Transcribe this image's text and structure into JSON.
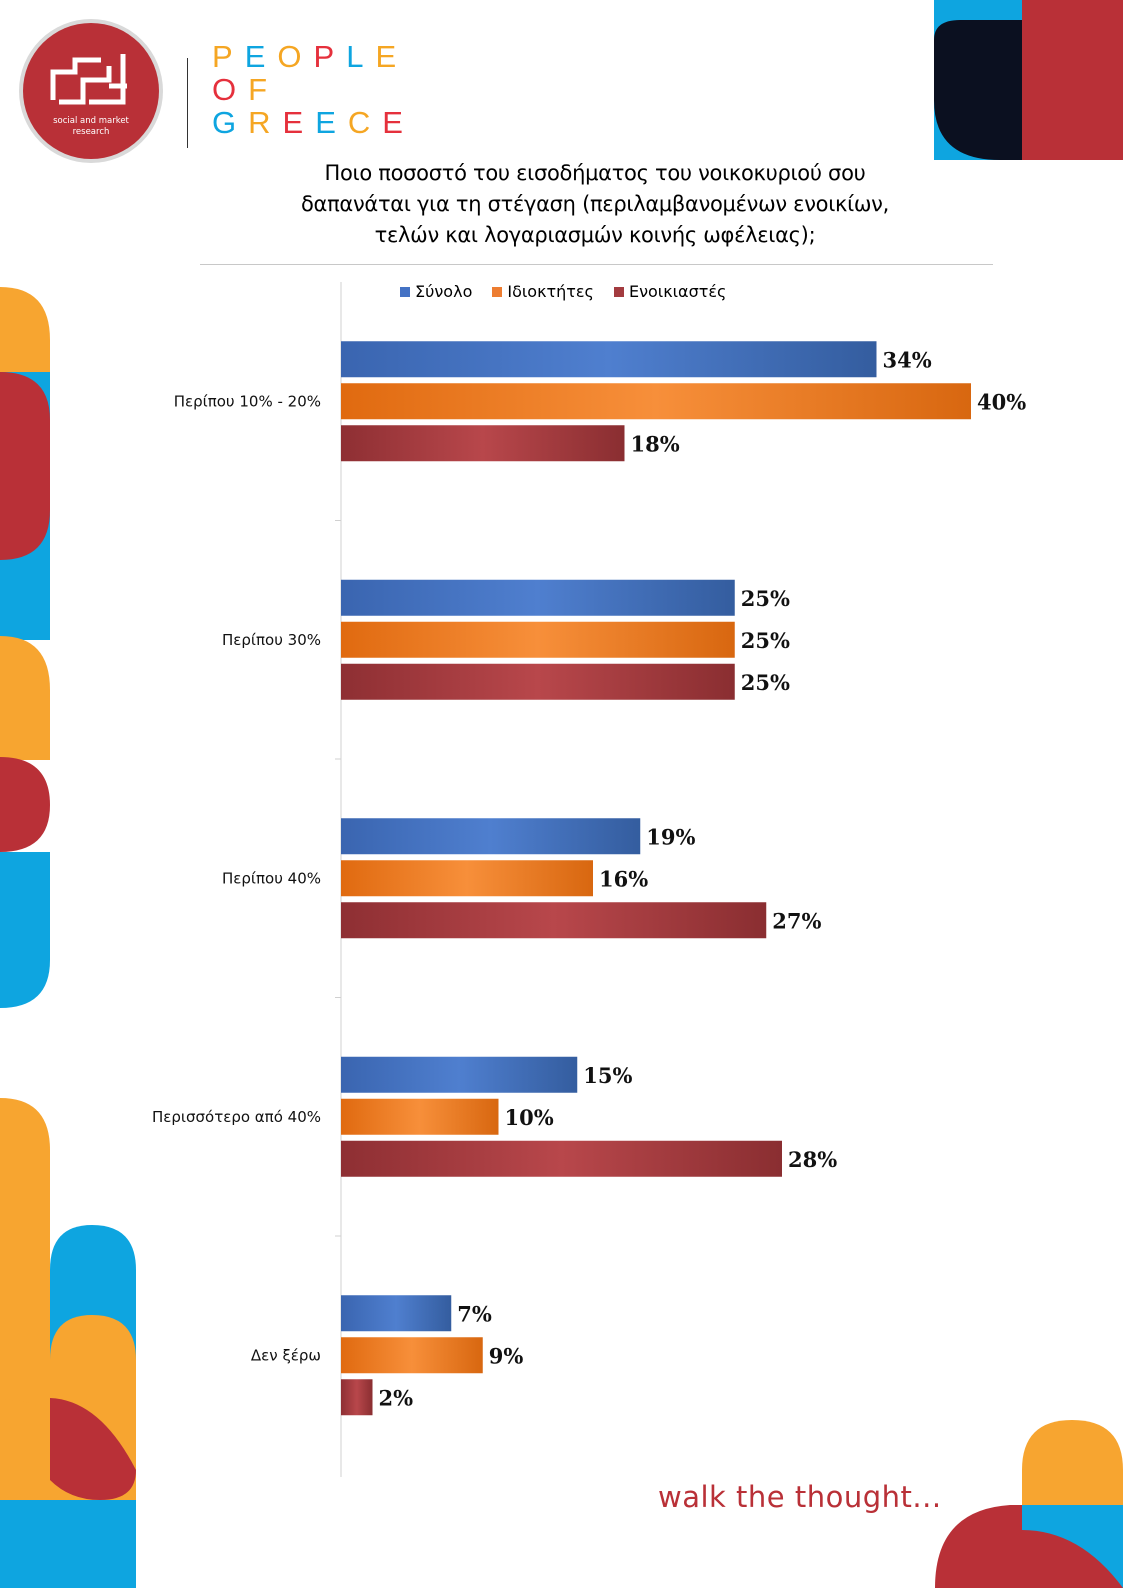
{
  "brand": {
    "logo_text": "social and market research",
    "lines": [
      [
        {
          "ch": "P",
          "color": "#f5a623"
        },
        {
          "ch": "E",
          "color": "#0ea5e0"
        },
        {
          "ch": "O",
          "color": "#f5a623"
        },
        {
          "ch": "P",
          "color": "#e5303c"
        },
        {
          "ch": "L",
          "color": "#0ea5e0"
        },
        {
          "ch": "E",
          "color": "#f5a623"
        }
      ],
      [
        {
          "ch": "O",
          "color": "#e5303c"
        },
        {
          "ch": "F",
          "color": "#f5a623"
        }
      ],
      [
        {
          "ch": "G",
          "color": "#0ea5e0"
        },
        {
          "ch": "R",
          "color": "#f5a623"
        },
        {
          "ch": "E",
          "color": "#e5303c"
        },
        {
          "ch": "E",
          "color": "#0ea5e0"
        },
        {
          "ch": "C",
          "color": "#f5a623"
        },
        {
          "ch": "E",
          "color": "#e5303c"
        }
      ]
    ]
  },
  "tagline": "walk the thought...",
  "colors": {
    "blue": "#4472c4",
    "orange": "#ed7d31",
    "red": "#a33b3f",
    "accent_red": "#b93037",
    "accent_orange": "#f7a530",
    "accent_blue": "#0ea5e0",
    "accent_navy": "#0b1020"
  },
  "chart_data": {
    "type": "bar",
    "orientation": "horizontal",
    "title_lines": [
      "Ποιο ποσοστό του εισοδήματος του νοικοκυριού σου",
      "δαπανάται για τη στέγαση (περιλαμβανομένων ενοικίων,",
      "τελών και λογαριασμών κοινής  ωφέλειας);"
    ],
    "categories": [
      "Περίπου 10% - 20%",
      "Περίπου 30%",
      "Περίπου 40%",
      "Περισσότερο από 40%",
      "Δεν ξέρω"
    ],
    "series": [
      {
        "name": "Σύνολο",
        "color": "#4472c4",
        "values": [
          34,
          25,
          19,
          15,
          7
        ],
        "labels": [
          "34%",
          "25%",
          "19%",
          "15%",
          "7%"
        ]
      },
      {
        "name": "Ιδιοκτήτες",
        "color": "#ed7d31",
        "values": [
          40,
          25,
          16,
          10,
          9
        ],
        "labels": [
          "40%",
          "25%",
          "16%",
          "10%",
          "9%"
        ]
      },
      {
        "name": "Ενοικιαστές",
        "color": "#a33b3f",
        "values": [
          18,
          25,
          27,
          28,
          2
        ],
        "labels": [
          "18%",
          "25%",
          "27%",
          "28%",
          "2%"
        ]
      }
    ],
    "xlim": [
      0,
      40
    ],
    "legend": "top",
    "grid": false
  }
}
